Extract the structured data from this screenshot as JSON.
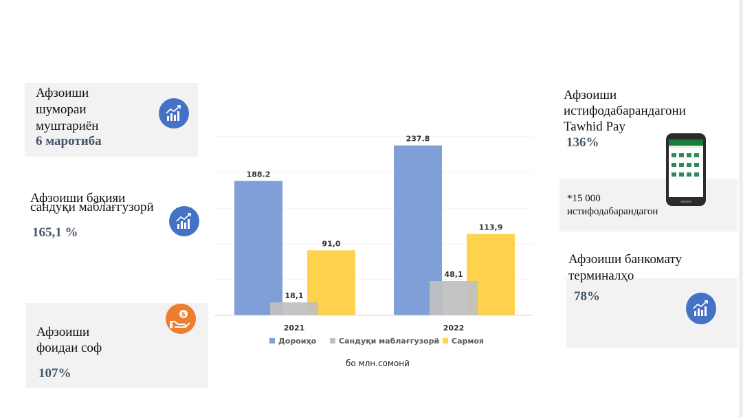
{
  "kpis": {
    "clients": {
      "label_lines": [
        "Афзоиши",
        "шумораи",
        "муштариён"
      ],
      "value": "6 маротиба",
      "icon": "growth-chart-icon"
    },
    "deposits": {
      "label_lines": [
        "Афзоиши бақияи",
        "сандуқи маблағгузорӣ"
      ],
      "value": "165,1 %",
      "icon": "growth-chart-icon"
    },
    "profit": {
      "label_lines": [
        "Афзоиши",
        "фоидаи соф"
      ],
      "value": "107%",
      "icon": "money-hand-icon"
    },
    "tawhid": {
      "label_lines": [
        "Афзоиши",
        "истифодабарандагони",
        "Tawhid Pay"
      ],
      "value": "136%",
      "note_lines": [
        "*15 000",
        "истифодабарандагон"
      ],
      "icon": "smartphone-icon"
    },
    "atm": {
      "label_lines": [
        "Афзоиши банкомату",
        "терминалҳо"
      ],
      "value": "78%",
      "icon": "growth-chart-icon"
    }
  },
  "colors": {
    "accent_blue": "#4472c4",
    "accent_orange": "#ed7d31",
    "value_text": "#44546a",
    "panel": "#f2f2f2"
  },
  "chart_data": {
    "type": "bar",
    "categories": [
      "2021",
      "2022"
    ],
    "series": [
      {
        "name": "Дороиҳо",
        "values": [
          188.2,
          237.8
        ],
        "labels": [
          "188.2",
          "237.8"
        ],
        "color": "#7f9fd6"
      },
      {
        "name": "Сандуқи маблағгузорӣ",
        "values": [
          18.1,
          48.1
        ],
        "labels": [
          "18,1",
          "48,1"
        ],
        "color": "#bfbfbf"
      },
      {
        "name": "Сармоя",
        "values": [
          91.0,
          113.9
        ],
        "labels": [
          "91,0",
          "113,9"
        ],
        "color": "#ffd24d"
      }
    ],
    "ylim": [
      0,
      250
    ],
    "legend": "bottom",
    "grid": true,
    "unit": "бо млн.сомонӣ"
  }
}
